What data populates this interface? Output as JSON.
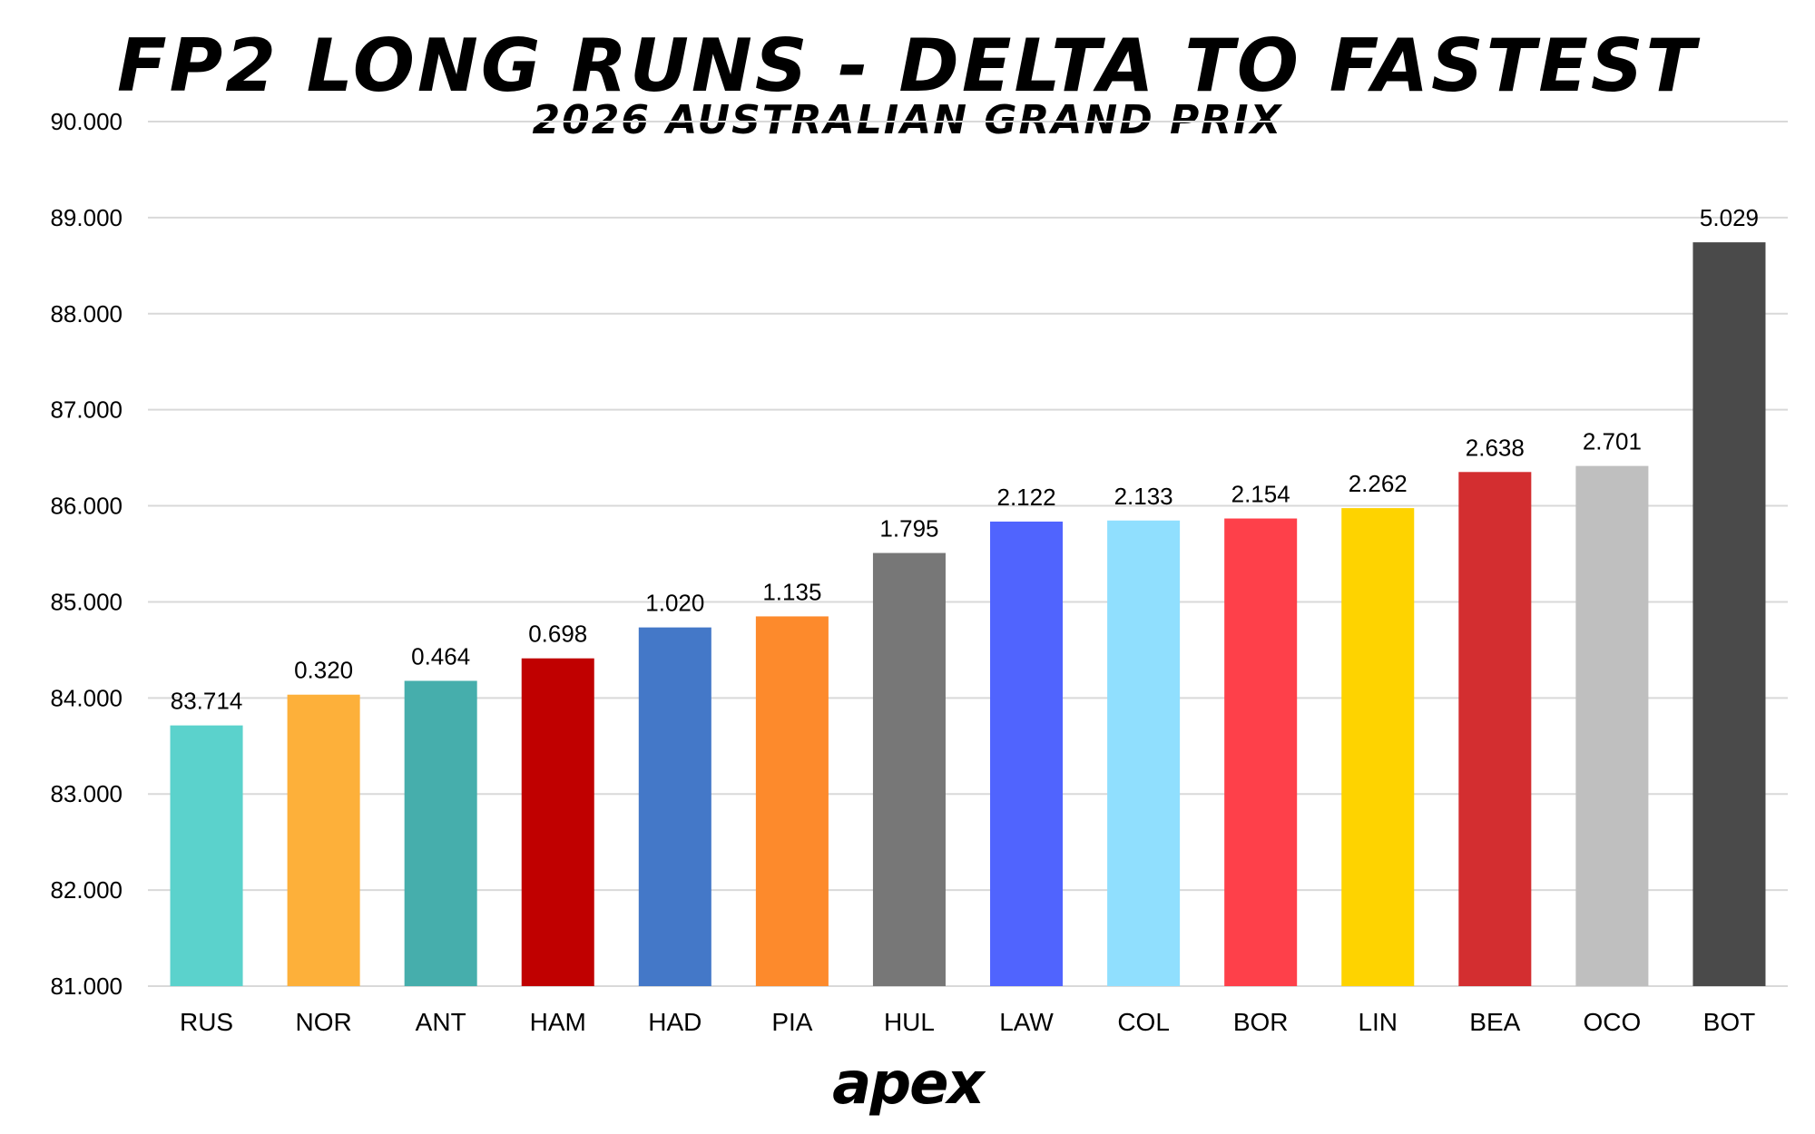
{
  "chart_data": {
    "type": "bar",
    "title": "FP2 LONG RUNS - DELTA TO FASTEST",
    "subtitle": "2026 AUSTRALIAN GRAND PRIX",
    "xlabel": "",
    "ylabel": "",
    "ylim": [
      81,
      90
    ],
    "yticks": [
      "81.000",
      "82.000",
      "83.000",
      "84.000",
      "85.000",
      "86.000",
      "87.000",
      "88.000",
      "89.000",
      "90.000"
    ],
    "grid": true,
    "categories": [
      "RUS",
      "NOR",
      "ANT",
      "HAM",
      "HAD",
      "PIA",
      "HUL",
      "LAW",
      "COL",
      "BOR",
      "LIN",
      "BEA",
      "OCO",
      "BOT"
    ],
    "values": [
      83.714,
      84.034,
      84.178,
      84.412,
      84.734,
      84.849,
      85.509,
      85.836,
      85.847,
      85.868,
      85.976,
      86.352,
      86.415,
      88.743
    ],
    "data_labels": [
      "83.714",
      "0.320",
      "0.464",
      "0.698",
      "1.020",
      "1.135",
      "1.795",
      "2.122",
      "2.133",
      "2.154",
      "2.262",
      "2.638",
      "2.701",
      "5.029"
    ],
    "colors": [
      "#5bd2cc",
      "#fdb03a",
      "#46aeac",
      "#c00000",
      "#4478c8",
      "#fd8a2c",
      "#777777",
      "#5064fe",
      "#90dffe",
      "#fe404a",
      "#fed300",
      "#d32e30",
      "#bfbfbf",
      "#4a4a4a"
    ]
  },
  "branding": {
    "logo_text": "apex"
  },
  "colors": {
    "grid": "#d9d9d9",
    "text": "#000000",
    "background": "#ffffff"
  }
}
